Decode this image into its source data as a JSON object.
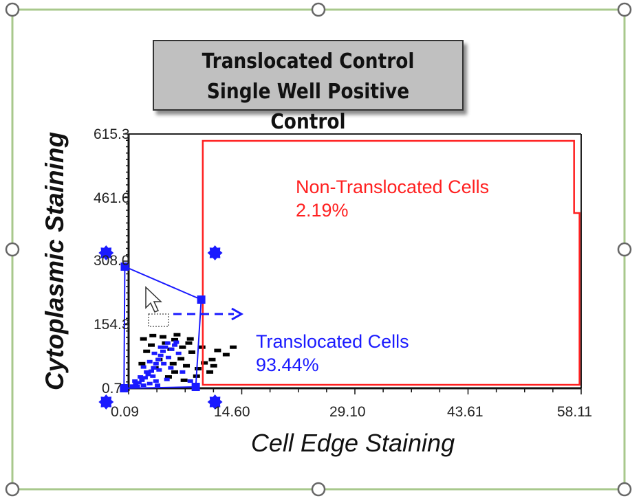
{
  "chart_data": {
    "type": "scatter",
    "title": [
      "Translocated Control",
      "Single Well Positive Control"
    ],
    "xlabel": "Cell Edge Staining",
    "ylabel": "Cytoplasmic Staining",
    "xlim": [
      0.09,
      58.11
    ],
    "ylim": [
      0.7,
      615.3
    ],
    "x_ticks": [
      "0.09",
      "14.60",
      "29.10",
      "43.61",
      "58.11"
    ],
    "y_ticks": [
      "615.3",
      "461.6",
      "308.0",
      "154.3",
      "0.7"
    ],
    "grid": false,
    "gates": [
      {
        "name": "Non-Translocated Cells",
        "percent": "2.19%",
        "color": "#ff2020",
        "polygon": [
          [
            9.6,
            9.0
          ],
          [
            9.6,
            598.7
          ],
          [
            57.2,
            598.7
          ],
          [
            57.2,
            424.3
          ],
          [
            57.9,
            424.3
          ],
          [
            57.9,
            9.0
          ]
        ]
      },
      {
        "name": "Translocated Cells",
        "percent": "93.44%",
        "color": "#1a1aff",
        "selected": true,
        "polygon": [
          [
            -0.4,
            294.7
          ],
          [
            9.4,
            215.0
          ],
          [
            8.7,
            4.0
          ],
          [
            -0.5,
            0.7
          ]
        ]
      }
    ],
    "series": [
      {
        "name": "outside-gate",
        "color": "#000000",
        "points": [
          [
            2.0,
            120
          ],
          [
            3.2,
            128
          ],
          [
            4.5,
            125
          ],
          [
            6.0,
            118
          ],
          [
            7.8,
            110
          ],
          [
            9.5,
            100
          ],
          [
            11.5,
            92
          ],
          [
            13.5,
            100
          ],
          [
            12.6,
            82
          ],
          [
            10.8,
            70
          ],
          [
            8.2,
            88
          ],
          [
            6.8,
            72
          ],
          [
            5.5,
            95
          ],
          [
            3.0,
            105
          ],
          [
            2.4,
            90
          ],
          [
            7.5,
            55
          ],
          [
            9.0,
            48
          ],
          [
            10.5,
            40
          ],
          [
            6.0,
            40
          ],
          [
            4.0,
            70
          ],
          [
            8.8,
            30
          ],
          [
            5.2,
            28
          ],
          [
            3.5,
            50
          ],
          [
            7.0,
            100
          ],
          [
            9.8,
            62
          ],
          [
            1.8,
            60
          ],
          [
            4.8,
            110
          ],
          [
            8.0,
            120
          ],
          [
            6.3,
            130
          ],
          [
            11.0,
            55
          ],
          [
            7.2,
            20
          ],
          [
            5.8,
            60
          ]
        ]
      },
      {
        "name": "translocated",
        "color": "#1a1aff",
        "points": [
          [
            0.6,
            6
          ],
          [
            1.0,
            10
          ],
          [
            1.4,
            14
          ],
          [
            1.8,
            20
          ],
          [
            2.2,
            26
          ],
          [
            2.6,
            34
          ],
          [
            3.0,
            42
          ],
          [
            3.3,
            50
          ],
          [
            3.6,
            60
          ],
          [
            3.9,
            70
          ],
          [
            4.2,
            80
          ],
          [
            4.5,
            90
          ],
          [
            4.8,
            100
          ],
          [
            5.1,
            110
          ],
          [
            1.2,
            5
          ],
          [
            2.0,
            8
          ],
          [
            2.8,
            12
          ],
          [
            3.6,
            18
          ],
          [
            1.6,
            28
          ],
          [
            2.4,
            40
          ],
          [
            3.2,
            30
          ],
          [
            4.0,
            45
          ],
          [
            4.6,
            60
          ],
          [
            5.2,
            75
          ],
          [
            5.6,
            95
          ],
          [
            6.0,
            105
          ],
          [
            2.0,
            52
          ],
          [
            2.8,
            65
          ],
          [
            3.4,
            85
          ],
          [
            4.2,
            100
          ],
          [
            0.9,
            18
          ],
          [
            5.5,
            50
          ],
          [
            6.5,
            85
          ],
          [
            8.0,
            18
          ],
          [
            3.8,
            8
          ],
          [
            5.0,
            22
          ],
          [
            7.0,
            40
          ],
          [
            6.2,
            112
          ]
        ]
      }
    ]
  },
  "annotations": {
    "non_translocated_label": "Non-Translocated Cells",
    "non_translocated_pct": "2.19%",
    "translocated_label": "Translocated Cells",
    "translocated_pct": "93.44%"
  },
  "colors": {
    "frame": "#a8c88c",
    "gate_red": "#ff2020",
    "gate_blue": "#1a1aff",
    "title_bg": "#c0c0c0"
  }
}
